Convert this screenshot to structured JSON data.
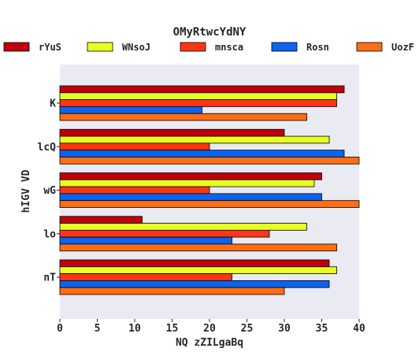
{
  "chart_data": {
    "type": "bar",
    "orientation": "horizontal",
    "title": "OMyRtwcYdNY",
    "xlabel": "NQ zZILgaBq",
    "ylabel": "hIGV VD",
    "xlim": [
      0,
      40
    ],
    "xticks": [
      0,
      5,
      10,
      15,
      20,
      25,
      30,
      35,
      40
    ],
    "grid": false,
    "legend_position": "top",
    "plot_background": "#eaeaf2",
    "categories": [
      "K",
      "lcQ",
      "wG",
      "lo",
      "nT"
    ],
    "series": [
      {
        "name": "rYuS",
        "color": "#c0000a",
        "values": [
          38,
          30,
          35,
          11,
          36
        ]
      },
      {
        "name": "WNsoJ",
        "color": "#e8ff20",
        "values": [
          37,
          36,
          34,
          33,
          37
        ]
      },
      {
        "name": "mnsca",
        "color": "#ff3516",
        "values": [
          37,
          20,
          20,
          28,
          23
        ]
      },
      {
        "name": "Rosn",
        "color": "#0a64f0",
        "values": [
          19,
          38,
          35,
          23,
          36
        ]
      },
      {
        "name": "UozF",
        "color": "#ff6d14",
        "values": [
          33,
          40,
          40,
          37,
          30
        ]
      }
    ]
  }
}
